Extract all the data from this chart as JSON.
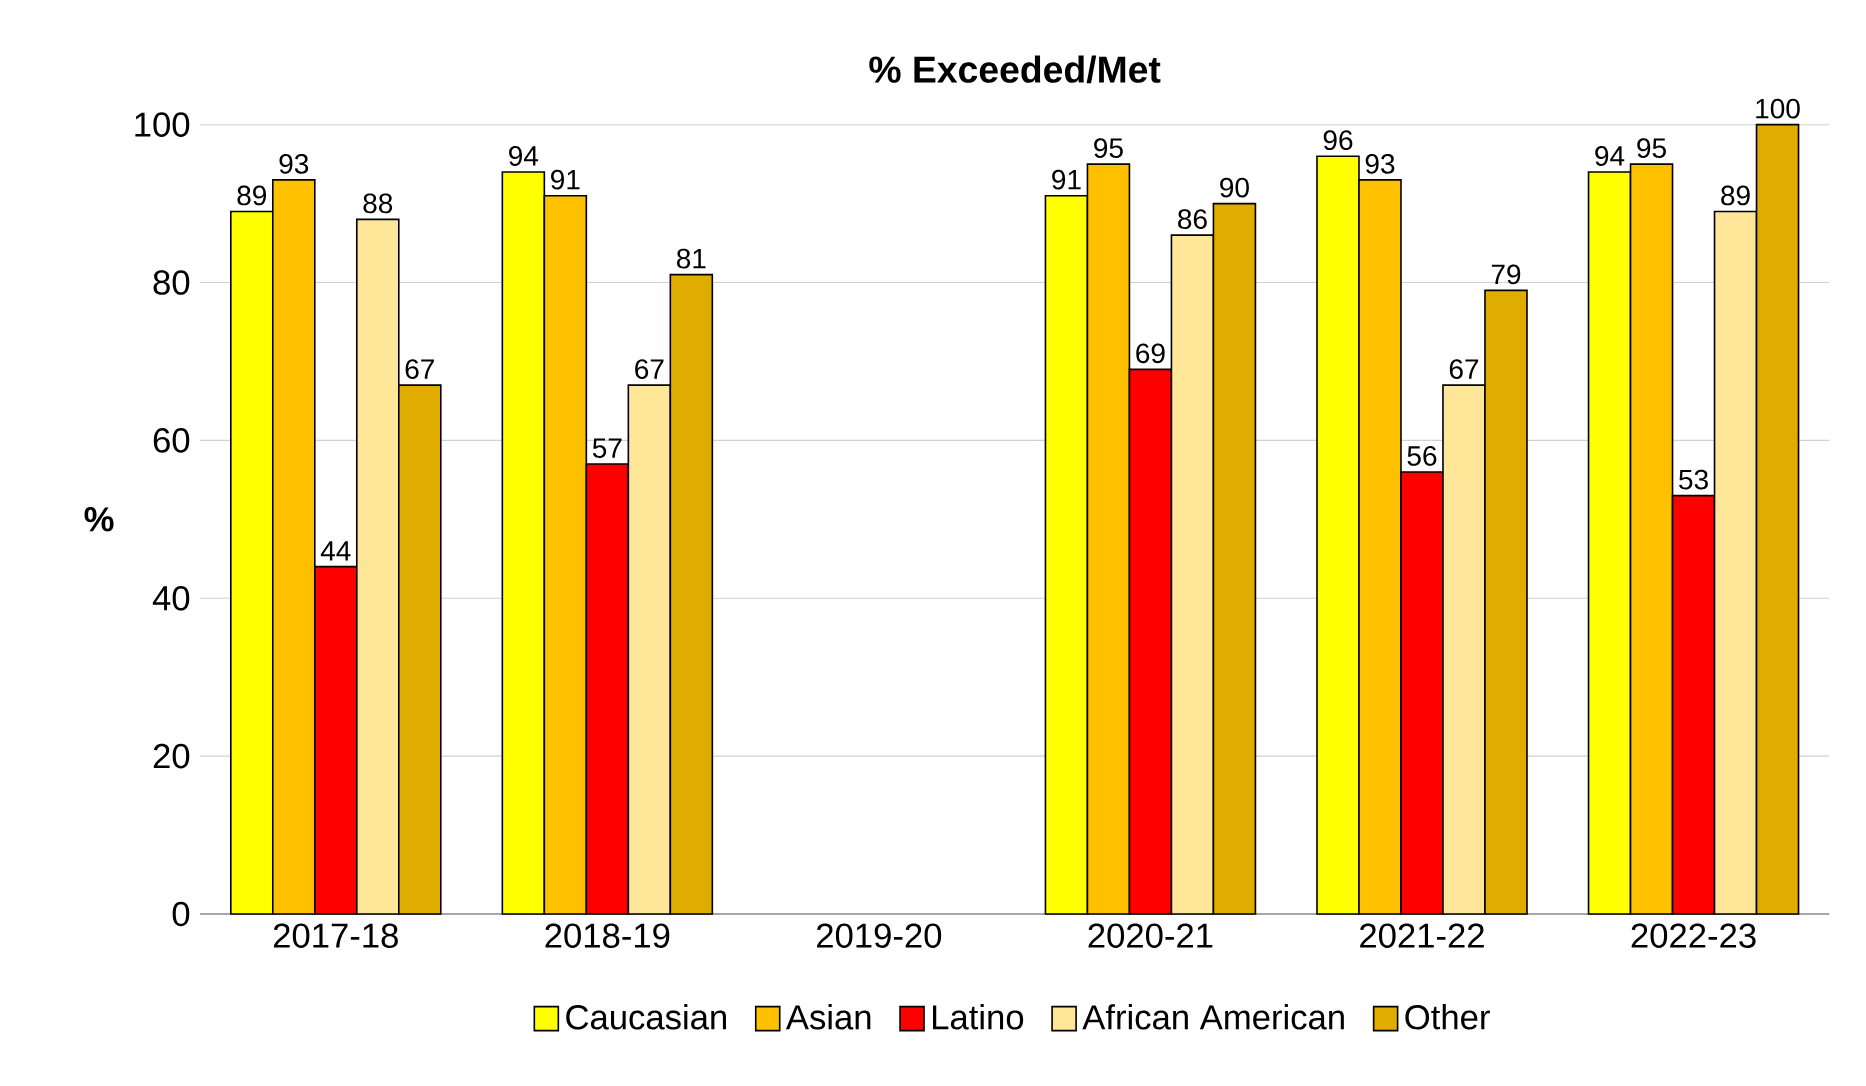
{
  "chart_data": {
    "type": "bar",
    "title": "% Exceeded/Met",
    "ylabel": "%",
    "categories": [
      "2017-18",
      "2018-19",
      "2019-20",
      "2020-21",
      "2021-22",
      "2022-23"
    ],
    "series": [
      {
        "name": "Caucasian",
        "color": "#ffff00",
        "values": [
          89,
          94,
          null,
          91,
          96,
          94
        ]
      },
      {
        "name": "Asian",
        "color": "#ffc000",
        "values": [
          93,
          91,
          null,
          95,
          93,
          95
        ]
      },
      {
        "name": "Latino",
        "color": "#ff0000",
        "values": [
          44,
          57,
          null,
          69,
          56,
          53
        ]
      },
      {
        "name": "African American",
        "color": "#ffe699",
        "values": [
          88,
          67,
          null,
          86,
          67,
          89
        ]
      },
      {
        "name": "Other",
        "color": "#e0ac00",
        "values": [
          67,
          81,
          null,
          90,
          79,
          100
        ]
      }
    ],
    "ylim": [
      0,
      100
    ],
    "yticks": [
      0,
      20,
      40,
      60,
      80,
      100
    ],
    "grid": "y",
    "legend": "bottom",
    "data_labels": true
  }
}
